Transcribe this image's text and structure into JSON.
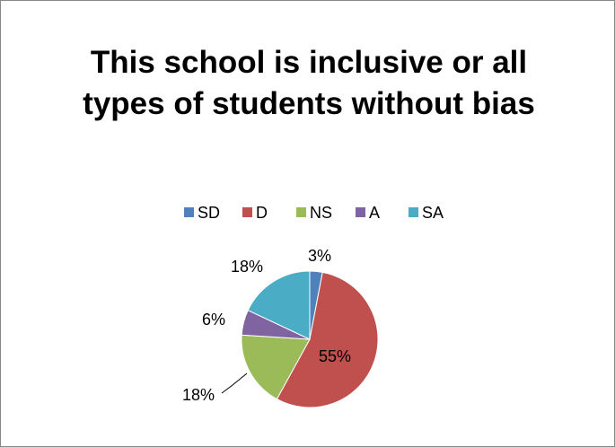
{
  "chart_data": {
    "type": "pie",
    "title": "This school is inclusive or all types of students without bias",
    "categories": [
      "SD",
      "D",
      "NS",
      "A",
      "SA"
    ],
    "values": [
      3,
      55,
      18,
      6,
      18
    ],
    "value_labels": [
      "3%",
      "55%",
      "18%",
      "6%",
      "18%"
    ],
    "colors": [
      "#4f81bd",
      "#c0504d",
      "#9bbb59",
      "#8064a2",
      "#4bacc6"
    ],
    "legend": "top"
  }
}
